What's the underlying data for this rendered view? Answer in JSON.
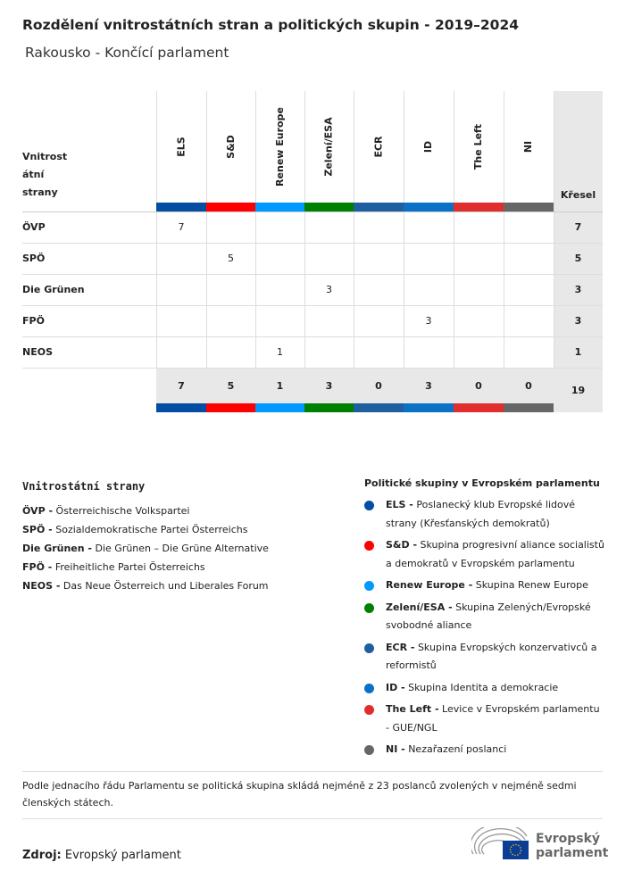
{
  "title": "Rozdělení vnitrostátních stran a politických skupin - 2019–2024",
  "subtitle": "Rakousko - Končící parlament",
  "table": {
    "row_header": "Vnitrost\nátní\nstrany",
    "seats_header": "Křesel",
    "groups": [
      {
        "name": "ELS",
        "color": "#034ea2"
      },
      {
        "name": "S&D",
        "color": "#ff0000"
      },
      {
        "name": "Renew Europe",
        "color": "#0099ff"
      },
      {
        "name": "Zelení/ESA",
        "color": "#008000"
      },
      {
        "name": "ECR",
        "color": "#1f5fa0"
      },
      {
        "name": "ID",
        "color": "#0a71c7"
      },
      {
        "name": "The Left",
        "color": "#e02e2e"
      },
      {
        "name": "NI",
        "color": "#666666"
      }
    ],
    "rows": [
      {
        "party": "ÖVP",
        "values": [
          7,
          null,
          null,
          null,
          null,
          null,
          null,
          null
        ],
        "total": 7
      },
      {
        "party": "SPÖ",
        "values": [
          null,
          5,
          null,
          null,
          null,
          null,
          null,
          null
        ],
        "total": 5
      },
      {
        "party": "Die Grünen",
        "values": [
          null,
          null,
          null,
          3,
          null,
          null,
          null,
          null
        ],
        "total": 3
      },
      {
        "party": "FPÖ",
        "values": [
          null,
          null,
          null,
          null,
          null,
          3,
          null,
          null
        ],
        "total": 3
      },
      {
        "party": "NEOS",
        "values": [
          null,
          null,
          1,
          null,
          null,
          null,
          null,
          null
        ],
        "total": 1
      }
    ],
    "totals": [
      7,
      5,
      1,
      3,
      0,
      3,
      0,
      0
    ],
    "grand_total": 19
  },
  "national_legend": {
    "title": "Vnitrostátní strany",
    "items": [
      {
        "abbr": "ÖVP -",
        "name": "Österreichische Volkspartei"
      },
      {
        "abbr": "SPÖ -",
        "name": "Sozialdemokratische Partei Österreichs"
      },
      {
        "abbr": "Die Grünen -",
        "name": "Die Grünen – Die Grüne Alternative"
      },
      {
        "abbr": "FPÖ -",
        "name": "Freiheitliche Partei Österreichs"
      },
      {
        "abbr": "NEOS -",
        "name": "Das Neue Österreich und Liberales Forum"
      }
    ]
  },
  "group_legend": {
    "title": "Politické skupiny v Evropském parlamentu",
    "items": [
      {
        "abbr": "ELS -",
        "name": "Poslanecký klub Evropské lidové strany (Křesťanských demokratů)",
        "color": "#034ea2"
      },
      {
        "abbr": "S&D -",
        "name": "Skupina progresivní aliance socialistů a demokratů v Evropském parlamentu",
        "color": "#ff0000"
      },
      {
        "abbr": "Renew Europe -",
        "name": "Skupina Renew Europe",
        "color": "#0099ff"
      },
      {
        "abbr": "Zelení/ESA -",
        "name": "Skupina Zelených/Evropské svobodné aliance",
        "color": "#008000"
      },
      {
        "abbr": "ECR -",
        "name": "Skupina Evropských konzervativců a reformistů",
        "color": "#1f5fa0"
      },
      {
        "abbr": "ID -",
        "name": "Skupina Identita a demokracie",
        "color": "#0a71c7"
      },
      {
        "abbr": "The Left -",
        "name": "Levice v Evropském parlamentu - GUE/NGL",
        "color": "#e02e2e"
      },
      {
        "abbr": "NI -",
        "name": "Nezařazení poslanci",
        "color": "#666666"
      }
    ]
  },
  "note": "Podle jednacího řádu Parlamentu se politická skupina skládá nejméně z 23 poslanců zvolených v nejméně sedmi členských státech.",
  "source": {
    "label": "Zdroj:",
    "value": "Evropský parlament"
  },
  "logo": {
    "text": "Evropský parlament"
  }
}
